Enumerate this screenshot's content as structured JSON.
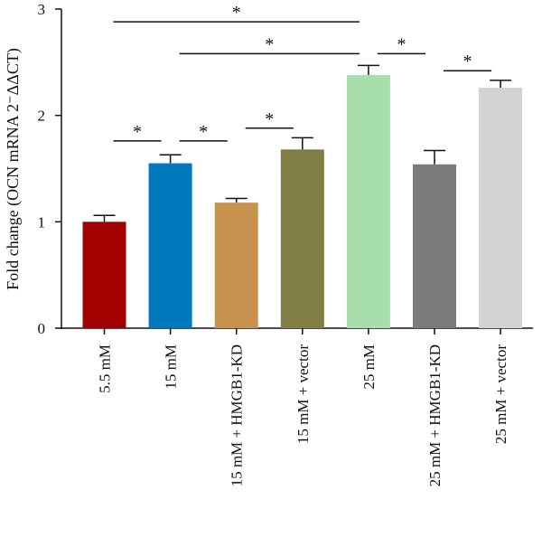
{
  "chart_data": {
    "type": "bar",
    "title": "",
    "xlabel": "",
    "ylabel": "Fold change (OCN mRNA 2⁻ΔΔCT)",
    "ylim": [
      0,
      3
    ],
    "yticks": [
      "0",
      "1",
      "2",
      "3"
    ],
    "categories": [
      "5.5 mM",
      "15 mM",
      "15 mM + HMGB1-KD",
      "15 mM + vector",
      "25 mM",
      "25 mM + HMGB1-KD",
      "25 mM + vector"
    ],
    "values": [
      1.0,
      1.55,
      1.18,
      1.68,
      2.38,
      1.54,
      2.26
    ],
    "errors": [
      0.06,
      0.08,
      0.04,
      0.11,
      0.09,
      0.13,
      0.07
    ],
    "colors": [
      "#a40000",
      "#0278bd",
      "#c7924e",
      "#827f45",
      "#a8deac",
      "#7b7b7b",
      "#d3d3d3"
    ],
    "grid": false,
    "significance": [
      {
        "from": 0,
        "to": 1,
        "level": 1.76,
        "label": "*"
      },
      {
        "from": 1,
        "to": 2,
        "level": 1.76,
        "label": "*"
      },
      {
        "from": 2,
        "to": 3,
        "level": 1.88,
        "label": "*"
      },
      {
        "from": 0,
        "to": 4,
        "level": 2.88,
        "label": "*"
      },
      {
        "from": 1,
        "to": 4,
        "level": 2.58,
        "label": "*"
      },
      {
        "from": 4,
        "to": 5,
        "level": 2.58,
        "label": "*"
      },
      {
        "from": 5,
        "to": 6,
        "level": 2.42,
        "label": "*"
      }
    ]
  }
}
